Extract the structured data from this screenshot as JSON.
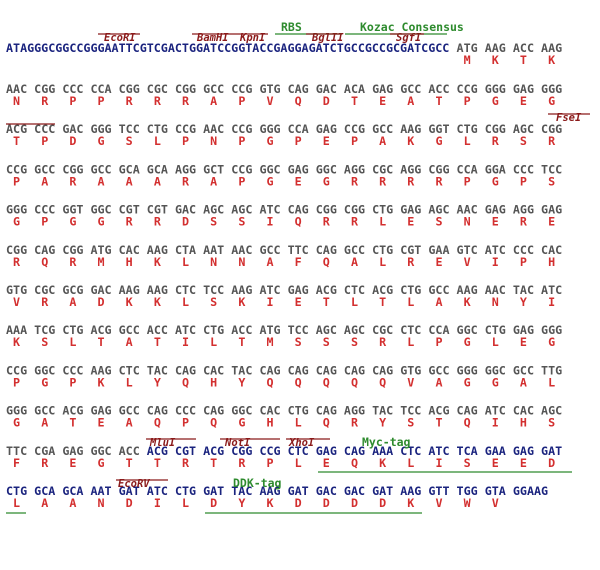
{
  "header": {
    "labels": [
      "RBS",
      "Kozac Consensus",
      "EcoRI",
      "BamHI",
      "KpnI",
      "BglII",
      "SgfI"
    ],
    "sequence": "ATAGGGCGGCCGGGAATTCGTCGACTGGATCCGGTACCGAGGAGATCTGCCGCCGCGATCGCC",
    "codons": [
      "ATG",
      "AAG",
      "ACC",
      "AAG"
    ],
    "aa": [
      "M",
      "K",
      "T",
      "K"
    ]
  },
  "rows": [
    {
      "codons": [
        "AAC",
        "CGG",
        "CCC",
        "CCA",
        "CGG",
        "CGC",
        "CGG",
        "GCC",
        "CCG",
        "GTG",
        "CAG",
        "GAC",
        "ACA",
        "GAG",
        "GCC",
        "ACC",
        "CCG",
        "GGG",
        "GAG",
        "GGG"
      ],
      "aa": [
        "N",
        "R",
        "P",
        "P",
        "R",
        "R",
        "R",
        "A",
        "P",
        "V",
        "Q",
        "D",
        "T",
        "E",
        "A",
        "T",
        "P",
        "G",
        "E",
        "G"
      ],
      "labels": []
    },
    {
      "codons": [
        "ACG",
        "CCC",
        "GAC",
        "GGG",
        "TCC",
        "CTG",
        "CCG",
        "AAC",
        "CCG",
        "GGG",
        "CCA",
        "GAG",
        "CCG",
        "GCC",
        "AAG",
        "GGT",
        "CTG",
        "CGG",
        "AGC",
        "CGG"
      ],
      "aa": [
        "T",
        "P",
        "D",
        "G",
        "S",
        "L",
        "P",
        "N",
        "P",
        "G",
        "P",
        "E",
        "P",
        "A",
        "K",
        "G",
        "L",
        "R",
        "S",
        "R"
      ],
      "labels": [
        "FseI"
      ]
    },
    {
      "codons": [
        "CCG",
        "GCC",
        "CGG",
        "GCC",
        "GCA",
        "GCA",
        "AGG",
        "GCT",
        "CCG",
        "GGC",
        "GAG",
        "GGC",
        "AGG",
        "CGC",
        "AGG",
        "CGG",
        "CCA",
        "GGA",
        "CCC",
        "TCC"
      ],
      "aa": [
        "P",
        "A",
        "R",
        "A",
        "A",
        "A",
        "R",
        "A",
        "P",
        "G",
        "E",
        "G",
        "R",
        "R",
        "R",
        "R",
        "P",
        "G",
        "P",
        "S"
      ],
      "labels": []
    },
    {
      "codons": [
        "GGG",
        "CCC",
        "GGT",
        "GGC",
        "CGT",
        "CGT",
        "GAC",
        "AGC",
        "AGC",
        "ATC",
        "CAG",
        "CGG",
        "CGG",
        "CTG",
        "GAG",
        "AGC",
        "AAC",
        "GAG",
        "AGG",
        "GAG"
      ],
      "aa": [
        "G",
        "P",
        "G",
        "G",
        "R",
        "R",
        "D",
        "S",
        "S",
        "I",
        "Q",
        "R",
        "R",
        "L",
        "E",
        "S",
        "N",
        "E",
        "R",
        "E"
      ],
      "labels": []
    },
    {
      "codons": [
        "CGG",
        "CAG",
        "CGG",
        "ATG",
        "CAC",
        "AAG",
        "CTA",
        "AAT",
        "AAC",
        "GCC",
        "TTC",
        "CAG",
        "GCC",
        "CTG",
        "CGT",
        "GAA",
        "GTC",
        "ATC",
        "CCC",
        "CAC"
      ],
      "aa": [
        "R",
        "Q",
        "R",
        "M",
        "H",
        "K",
        "L",
        "N",
        "N",
        "A",
        "F",
        "Q",
        "A",
        "L",
        "R",
        "E",
        "V",
        "I",
        "P",
        "H"
      ],
      "labels": []
    },
    {
      "codons": [
        "GTG",
        "CGC",
        "GCG",
        "GAC",
        "AAG",
        "AAG",
        "CTC",
        "TCC",
        "AAG",
        "ATC",
        "GAG",
        "ACG",
        "CTC",
        "ACG",
        "CTG",
        "GCC",
        "AAG",
        "AAC",
        "TAC",
        "ATC"
      ],
      "aa": [
        "V",
        "R",
        "A",
        "D",
        "K",
        "K",
        "L",
        "S",
        "K",
        "I",
        "E",
        "T",
        "L",
        "T",
        "L",
        "A",
        "K",
        "N",
        "Y",
        "I"
      ],
      "labels": []
    },
    {
      "codons": [
        "AAA",
        "TCG",
        "CTG",
        "ACG",
        "GCC",
        "ACC",
        "ATC",
        "CTG",
        "ACC",
        "ATG",
        "TCC",
        "AGC",
        "AGC",
        "CGC",
        "CTC",
        "CCA",
        "GGC",
        "CTG",
        "GAG",
        "GGG"
      ],
      "aa": [
        "K",
        "S",
        "L",
        "T",
        "A",
        "T",
        "I",
        "L",
        "T",
        "M",
        "S",
        "S",
        "S",
        "R",
        "L",
        "P",
        "G",
        "L",
        "E",
        "G"
      ],
      "labels": []
    },
    {
      "codons": [
        "CCG",
        "GGC",
        "CCC",
        "AAG",
        "CTC",
        "TAC",
        "CAG",
        "CAC",
        "TAC",
        "CAG",
        "CAG",
        "CAG",
        "CAG",
        "CAG",
        "GTG",
        "GCC",
        "GGG",
        "GGC",
        "GCC",
        "TTG"
      ],
      "aa": [
        "P",
        "G",
        "P",
        "K",
        "L",
        "Y",
        "Q",
        "H",
        "Y",
        "Q",
        "Q",
        "Q",
        "Q",
        "Q",
        "V",
        "A",
        "G",
        "G",
        "A",
        "L"
      ],
      "labels": []
    },
    {
      "codons": [
        "GGG",
        "GCC",
        "ACG",
        "GAG",
        "GCC",
        "CAG",
        "CCC",
        "CAG",
        "GGC",
        "CAC",
        "CTG",
        "CAG",
        "AGG",
        "TAC",
        "TCC",
        "ACG",
        "CAG",
        "ATC",
        "CAC",
        "AGC"
      ],
      "aa": [
        "G",
        "A",
        "T",
        "E",
        "A",
        "Q",
        "P",
        "Q",
        "G",
        "H",
        "L",
        "Q",
        "R",
        "Y",
        "S",
        "T",
        "Q",
        "I",
        "H",
        "S"
      ],
      "labels": []
    },
    {
      "codons": [
        "TTC",
        "CGA",
        "GAG",
        "GGC",
        "ACC",
        "ACG",
        "CGT",
        "ACG",
        "CGG",
        "CCG",
        "CTC",
        "GAG",
        "CAG",
        "AAA",
        "CTC",
        "ATC",
        "TCA",
        "GAA",
        "GAG",
        "GAT"
      ],
      "aa": [
        "F",
        "R",
        "E",
        "G",
        "T",
        "T",
        "R",
        "T",
        "R",
        "P",
        "L",
        "E",
        "Q",
        "K",
        "L",
        "I",
        "S",
        "E",
        "E",
        "D"
      ],
      "labels": [
        "MluI",
        "NotI",
        "XhoI",
        "Myc-tag"
      ]
    },
    {
      "codons": [
        "CTG",
        "GCA",
        "GCA",
        "AAT",
        "GAT",
        "ATC",
        "CTG",
        "GAT",
        "TAC",
        "AAG",
        "GAT",
        "GAC",
        "GAC",
        "GAT",
        "AAG",
        "GTT",
        "TGG",
        "GTA",
        "GGAAG"
      ],
      "aa": [
        "L",
        "A",
        "A",
        "N",
        "D",
        "I",
        "L",
        "D",
        "Y",
        "K",
        "D",
        "D",
        "D",
        "D",
        "K",
        "V",
        "W",
        "V"
      ],
      "labels": [
        "EcoRV",
        "DDK-tag"
      ]
    }
  ]
}
